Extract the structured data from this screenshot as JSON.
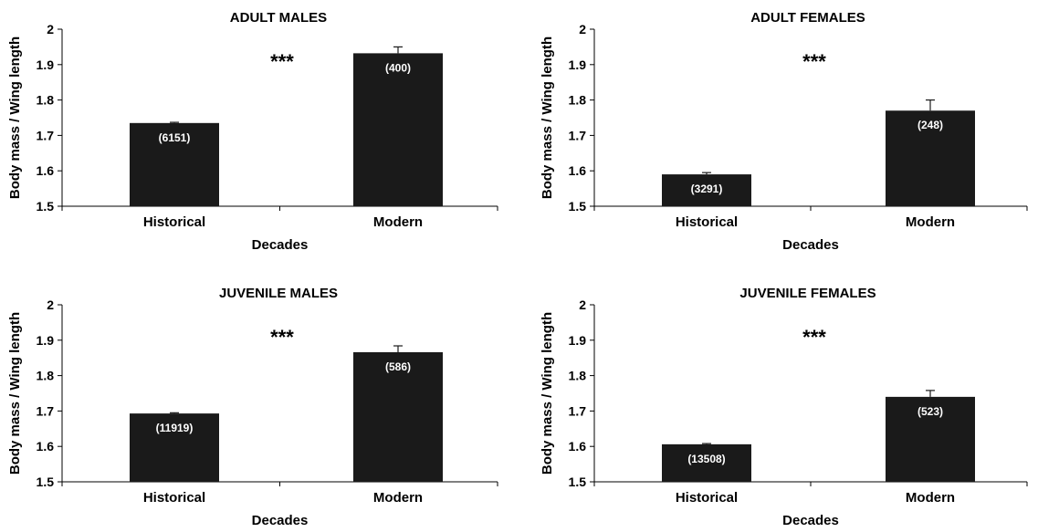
{
  "chart_data": [
    {
      "type": "bar",
      "title": "ADULT MALES",
      "xlabel": "Decades",
      "ylabel": "Body mass / Wing length",
      "ylim": [
        1.5,
        2.0
      ],
      "yticks": [
        "1.5",
        "1.6",
        "1.7",
        "1.8",
        "1.9",
        "2"
      ],
      "categories": [
        "Historical",
        "Modern"
      ],
      "values": [
        1.735,
        1.932
      ],
      "errors": [
        0.002,
        0.018
      ],
      "bar_labels": [
        "(6151)",
        "(400)"
      ],
      "significance": "***",
      "bar_color": "#1a1a1a"
    },
    {
      "type": "bar",
      "title": "ADULT FEMALES",
      "xlabel": "Decades",
      "ylabel": "Body mass / Wing length",
      "ylim": [
        1.5,
        2.0
      ],
      "yticks": [
        "1.5",
        "1.6",
        "1.7",
        "1.8",
        "1.9",
        "2"
      ],
      "categories": [
        "Historical",
        "Modern"
      ],
      "values": [
        1.59,
        1.77
      ],
      "errors": [
        0.005,
        0.03
      ],
      "bar_labels": [
        "(3291)",
        "(248)"
      ],
      "significance": "***",
      "bar_color": "#1a1a1a"
    },
    {
      "type": "bar",
      "title": "JUVENILE MALES",
      "xlabel": "Decades",
      "ylabel": "Body mass / Wing length",
      "ylim": [
        1.5,
        2.0
      ],
      "yticks": [
        "1.5",
        "1.6",
        "1.7",
        "1.8",
        "1.9",
        "2"
      ],
      "categories": [
        "Historical",
        "Modern"
      ],
      "values": [
        1.693,
        1.866
      ],
      "errors": [
        0.002,
        0.018
      ],
      "bar_labels": [
        "(11919)",
        "(586)"
      ],
      "significance": "***",
      "bar_color": "#1a1a1a"
    },
    {
      "type": "bar",
      "title": "JUVENILE FEMALES",
      "xlabel": "Decades",
      "ylabel": "Body mass / Wing length",
      "ylim": [
        1.5,
        2.0
      ],
      "yticks": [
        "1.5",
        "1.6",
        "1.7",
        "1.8",
        "1.9",
        "2"
      ],
      "categories": [
        "Historical",
        "Modern"
      ],
      "values": [
        1.606,
        1.74
      ],
      "errors": [
        0.002,
        0.018
      ],
      "bar_labels": [
        "(13508)",
        "(523)"
      ],
      "significance": "***",
      "bar_color": "#1a1a1a"
    }
  ]
}
